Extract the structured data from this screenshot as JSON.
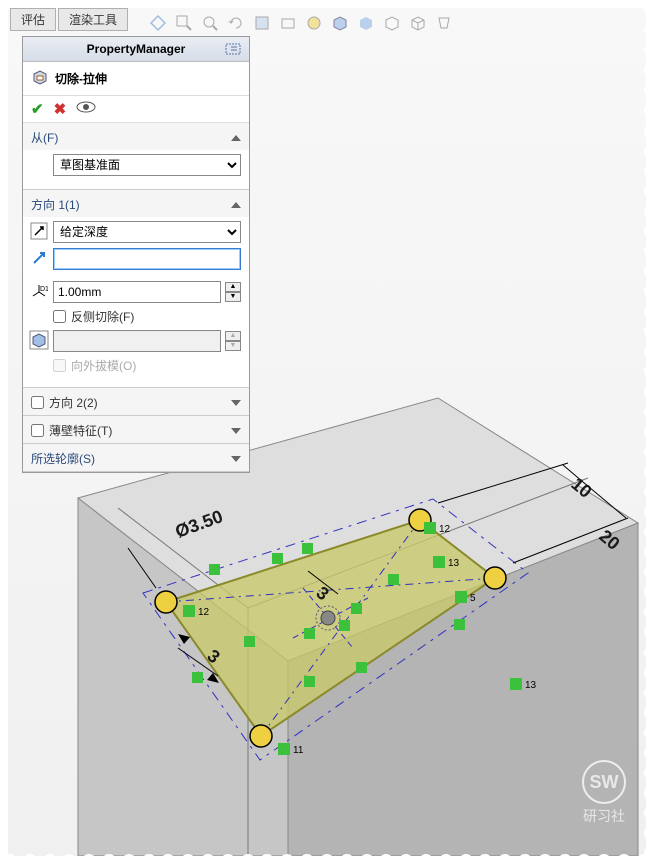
{
  "tabs": {
    "evaluate": "评估",
    "render": "渲染工具"
  },
  "panel": {
    "title": "PropertyManager",
    "feature_name": "切除-拉伸",
    "from": {
      "label": "从(F)",
      "option": "草图基准面"
    },
    "dir1": {
      "label": "方向 1(1)",
      "end_condition": "给定深度",
      "depth_value": "1.00mm",
      "flip_label": "反侧切除(F)",
      "draft_label": "向外拔模(O)"
    },
    "dir2": {
      "label": "方向 2(2)"
    },
    "thin": {
      "label": "薄壁特征(T)"
    },
    "contours": {
      "label": "所选轮廓(S)"
    }
  },
  "dims": {
    "diameter": "Ø3.50",
    "width": "10",
    "height": "20",
    "gap1": "3",
    "gap2": "3"
  },
  "constraints": [
    "11",
    "12",
    "12",
    "13",
    "13",
    "5"
  ],
  "colors": {
    "sketch_fill": "#c8c86a",
    "sketch_stroke": "#8a8a2a",
    "construction": "#3030c0",
    "dim_color": "#1a1a1a",
    "relation_bg": "#3cc13c",
    "part_face_top": "#dedede",
    "part_face_front": "#c6c6c6",
    "part_face_side": "#b4b4b4",
    "circle_fill": "#eed040"
  },
  "watermark": {
    "logo": "SW",
    "text": "研习社"
  }
}
